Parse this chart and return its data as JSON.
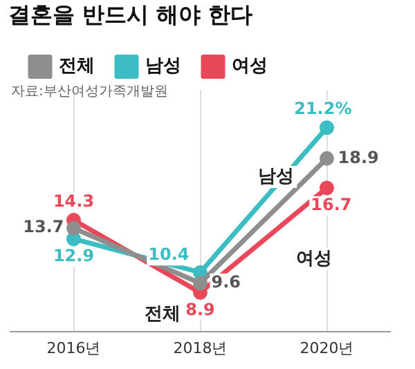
{
  "chart_data": {
    "type": "line",
    "title": "결혼을 반드시 해야 한다",
    "categories": [
      "2016년",
      "2018년",
      "2020년"
    ],
    "series": [
      {
        "name": "전체",
        "color": "#8e8e8e",
        "values": [
          13.7,
          9.6,
          18.9
        ],
        "value_labels": [
          "13.7",
          "9.6",
          "18.9"
        ]
      },
      {
        "name": "남성",
        "color": "#3cbcc3",
        "values": [
          12.9,
          10.4,
          21.2
        ],
        "value_labels": [
          "12.9",
          "10.4",
          "21.2%"
        ]
      },
      {
        "name": "여성",
        "color": "#e9485a",
        "values": [
          14.3,
          8.9,
          16.7
        ],
        "value_labels": [
          "14.3",
          "8.9",
          "16.7"
        ]
      }
    ],
    "annotations": [
      "자료:부산여성가족개발원",
      "남성",
      "여성",
      "전체"
    ],
    "legend": "top left",
    "grid": "x",
    "marker": "circle",
    "line_style": "solid"
  }
}
